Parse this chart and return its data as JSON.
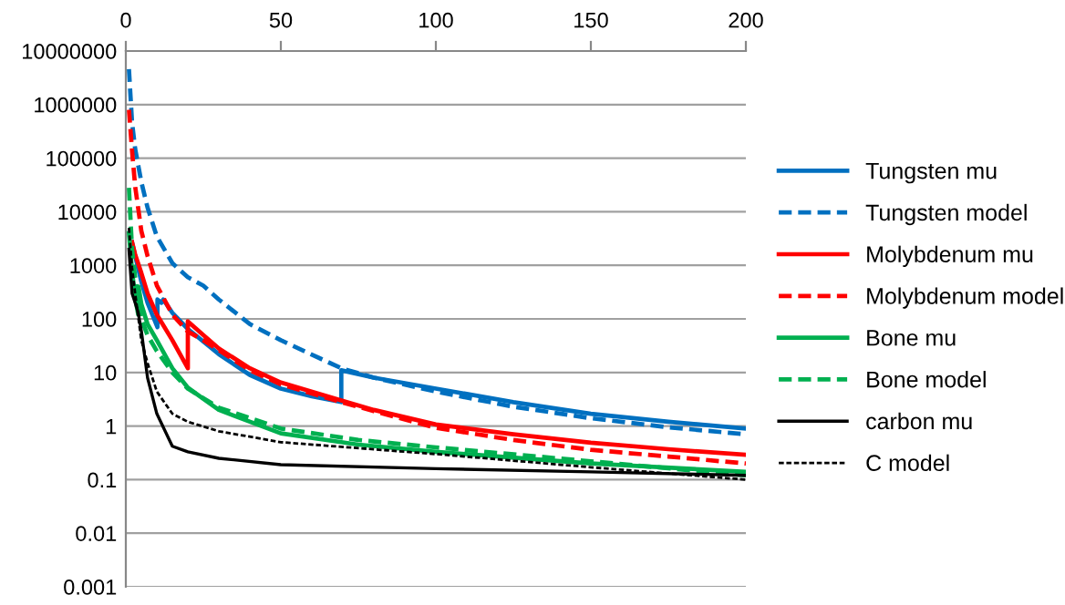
{
  "chart_data": {
    "type": "line",
    "log": "y",
    "xlim": [
      0,
      200
    ],
    "xticks": [
      0,
      50,
      100,
      150,
      200
    ],
    "ylim": [
      0.001,
      10000000
    ],
    "yticks": [
      0.001,
      0.01,
      0.1,
      1,
      10,
      100,
      1000,
      10000,
      100000,
      1000000,
      10000000
    ],
    "grid": "y",
    "legend": "right",
    "marker": "none",
    "series": [
      {
        "name": "Tungsten mu",
        "color": "#0070c0",
        "line_style": "solid",
        "x": [
          2,
          3,
          5,
          7,
          10.2,
          10.2,
          11.5,
          12.1,
          15,
          20,
          30,
          40,
          50,
          60,
          69.5,
          69.5,
          80,
          100,
          125,
          150,
          175,
          200
        ],
        "values": [
          2700,
          1500,
          500,
          200,
          70,
          230,
          200,
          230,
          130,
          65,
          22,
          9,
          5,
          3.6,
          2.8,
          11,
          8,
          5,
          2.8,
          1.7,
          1.2,
          0.9
        ]
      },
      {
        "name": "Tungsten model",
        "color": "#0070c0",
        "line_style": "dashed",
        "x": [
          1,
          2,
          3,
          5,
          7,
          10,
          15,
          20,
          25,
          30,
          40,
          50,
          69.5,
          80,
          100,
          125,
          150,
          175,
          200
        ],
        "values": [
          4600000,
          470000,
          150000,
          36000,
          12000,
          3450,
          1100,
          600,
          417,
          230,
          80,
          40,
          12,
          8,
          4.4,
          2.3,
          1.4,
          0.95,
          0.7
        ]
      },
      {
        "name": "Molybdenum mu",
        "color": "#ff0000",
        "line_style": "solid",
        "x": [
          2,
          3,
          5,
          7,
          10,
          15,
          20,
          20,
          25,
          30,
          40,
          50,
          69.5,
          80,
          100,
          125,
          150,
          175,
          200
        ],
        "values": [
          2700,
          1600,
          720,
          300,
          120,
          40,
          12,
          90,
          50,
          28,
          12,
          6.5,
          3,
          2,
          1.07,
          0.7,
          0.49,
          0.37,
          0.29
        ]
      },
      {
        "name": "Molybdenum model",
        "color": "#ff0000",
        "line_style": "dashed",
        "x": [
          1,
          2,
          3,
          5,
          7,
          10,
          15,
          20,
          25,
          30,
          40,
          50,
          69.5,
          80,
          100,
          125,
          150,
          175,
          200
        ],
        "values": [
          800000,
          140000,
          30000,
          4400,
          1500,
          420,
          120,
          58,
          40,
          26,
          11,
          6,
          2.8,
          1.9,
          0.93,
          0.55,
          0.36,
          0.27,
          0.2
        ]
      },
      {
        "name": "Bone mu",
        "color": "#00b050",
        "line_style": "solid",
        "x": [
          1,
          2,
          3,
          4,
          4.1,
          5,
          7,
          10,
          15,
          20,
          30,
          50,
          75,
          100,
          150,
          200
        ],
        "values": [
          4000,
          800,
          250,
          120,
          400,
          190,
          80,
          40,
          12,
          5.2,
          2,
          0.73,
          0.45,
          0.33,
          0.2,
          0.14
        ]
      },
      {
        "name": "Bone model",
        "color": "#00b050",
        "line_style": "dashed",
        "x": [
          1,
          2,
          3,
          5,
          7,
          10,
          15,
          20,
          30,
          50,
          75,
          100,
          150,
          200
        ],
        "values": [
          28000,
          2000,
          600,
          100,
          50,
          25,
          10,
          5,
          2.2,
          0.9,
          0.55,
          0.4,
          0.22,
          0.12
        ]
      },
      {
        "name": "carbon mu",
        "color": "#000000",
        "line_style": "solid",
        "x": [
          1,
          2,
          3,
          4,
          5,
          7,
          10,
          15,
          20,
          30,
          50,
          100,
          150,
          200
        ],
        "values": [
          2000,
          300,
          200,
          130,
          60,
          8,
          1.7,
          0.42,
          0.33,
          0.25,
          0.19,
          0.16,
          0.14,
          0.12
        ]
      },
      {
        "name": "C model",
        "color": "#000000",
        "line_style": "dotted",
        "x": [
          1,
          2,
          3,
          5,
          7,
          10,
          15,
          20,
          30,
          50,
          100,
          150,
          200
        ],
        "values": [
          5000,
          900,
          300,
          40,
          15,
          4.4,
          1.7,
          1.2,
          0.8,
          0.5,
          0.3,
          0.17,
          0.1
        ]
      }
    ]
  }
}
